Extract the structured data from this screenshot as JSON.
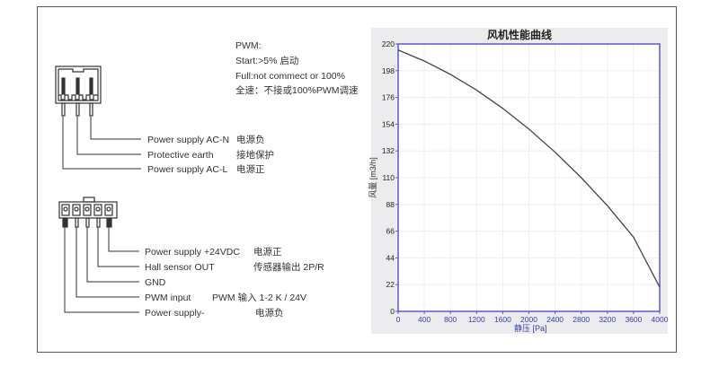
{
  "pwm_notes": {
    "title": "PWM:",
    "start": "Start:>5% 启动",
    "full": "Full:not commect or 100%",
    "full_cn": "全速：不接或100%PWM调速"
  },
  "ac_connector": {
    "pins": [
      {
        "label": "Power supply AC-N",
        "cn": "电源负"
      },
      {
        "label": "Protective earth",
        "cn": "接地保护"
      },
      {
        "label": "Power supply AC-L",
        "cn": "电源正"
      }
    ]
  },
  "dc_connector": {
    "pins": [
      {
        "label": "Power supply +24VDC",
        "cn": "电源正"
      },
      {
        "label": "Hall sensor OUT",
        "cn": "传感器输出  2P/R"
      },
      {
        "label": "GND",
        "cn": ""
      },
      {
        "label": "PWM input",
        "cn": "PWM 输入  1-2 K / 24V"
      },
      {
        "label": "Power supply-",
        "cn": "电源负"
      }
    ]
  },
  "chart_data": {
    "type": "line",
    "title": "风机性能曲线",
    "xlabel": "静压 [Pa]",
    "ylabel": "风量 [m3/h]",
    "xlim": [
      0,
      4000
    ],
    "ylim": [
      0,
      220
    ],
    "x_ticks": [
      0,
      400,
      800,
      1200,
      1600,
      2000,
      2400,
      2800,
      3200,
      3600,
      4000
    ],
    "y_ticks": [
      0,
      22,
      44,
      66,
      88,
      110,
      132,
      154,
      176,
      198,
      220
    ],
    "grid": true,
    "legend": "none",
    "series": [
      {
        "name": "风量",
        "x": [
          0,
          400,
          800,
          1200,
          1600,
          2000,
          2400,
          2800,
          3200,
          3600,
          4000
        ],
        "y": [
          215,
          206,
          195,
          182,
          167,
          150,
          131,
          110,
          87,
          61,
          20
        ]
      }
    ],
    "colors": {
      "axis": "#5a5ad0",
      "line": "#444444",
      "panel": "#ececef",
      "grid": "#eeeeee"
    }
  }
}
